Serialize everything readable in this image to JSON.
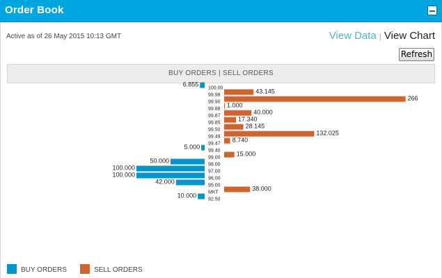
{
  "window": {
    "title": "Order Book"
  },
  "status": {
    "active_as_of": "Active as of 26 May 2015 10:13 GMT"
  },
  "view_links": {
    "view_data": "View Data",
    "separator": "|",
    "view_chart": "View Chart"
  },
  "toolbar": {
    "refresh_label": "Refresh"
  },
  "chart_header": {
    "label": "BUY ORDERS | SELL ORDERS"
  },
  "colors": {
    "title_bar": "#00a6df",
    "buy": "#0096c9",
    "sell": "#cd6530"
  },
  "legend": {
    "buy": "BUY ORDERS",
    "sell": "SELL ORDERS"
  },
  "chart_data": {
    "type": "bar",
    "orientation": "horizontal-diverging",
    "categories": [
      "100.00",
      "99.98",
      "99.90",
      "99.88",
      "99.87",
      "99.85",
      "99.50",
      "99.49",
      "99.47",
      "99.40",
      "99.00",
      "98.00",
      "97.00",
      "96.00",
      "95.00",
      "MKT",
      "92.50"
    ],
    "series": [
      {
        "name": "BUY ORDERS",
        "values": [
          6.855,
          null,
          null,
          null,
          null,
          null,
          null,
          null,
          null,
          5.0,
          null,
          50.0,
          100.0,
          100.0,
          42.0,
          null,
          10.0
        ],
        "labels": [
          "6.855",
          "",
          "",
          "",
          "",
          "",
          "",
          "",
          "",
          "5.000",
          "",
          "50.000",
          "100.000",
          "100.000",
          "42.000",
          "",
          "10.000"
        ]
      },
      {
        "name": "SELL ORDERS",
        "values": [
          null,
          43.145,
          266,
          1.0,
          40.0,
          17.34,
          28.145,
          132.025,
          8.74,
          null,
          15.0,
          null,
          null,
          null,
          null,
          38.0,
          null
        ],
        "labels": [
          "",
          "43.145",
          "266",
          "1.000",
          "40.000",
          "17.340",
          "28.145",
          "132.025",
          "8.740",
          "",
          "15.000",
          "",
          "",
          "",
          "",
          "38.000",
          ""
        ]
      }
    ]
  }
}
